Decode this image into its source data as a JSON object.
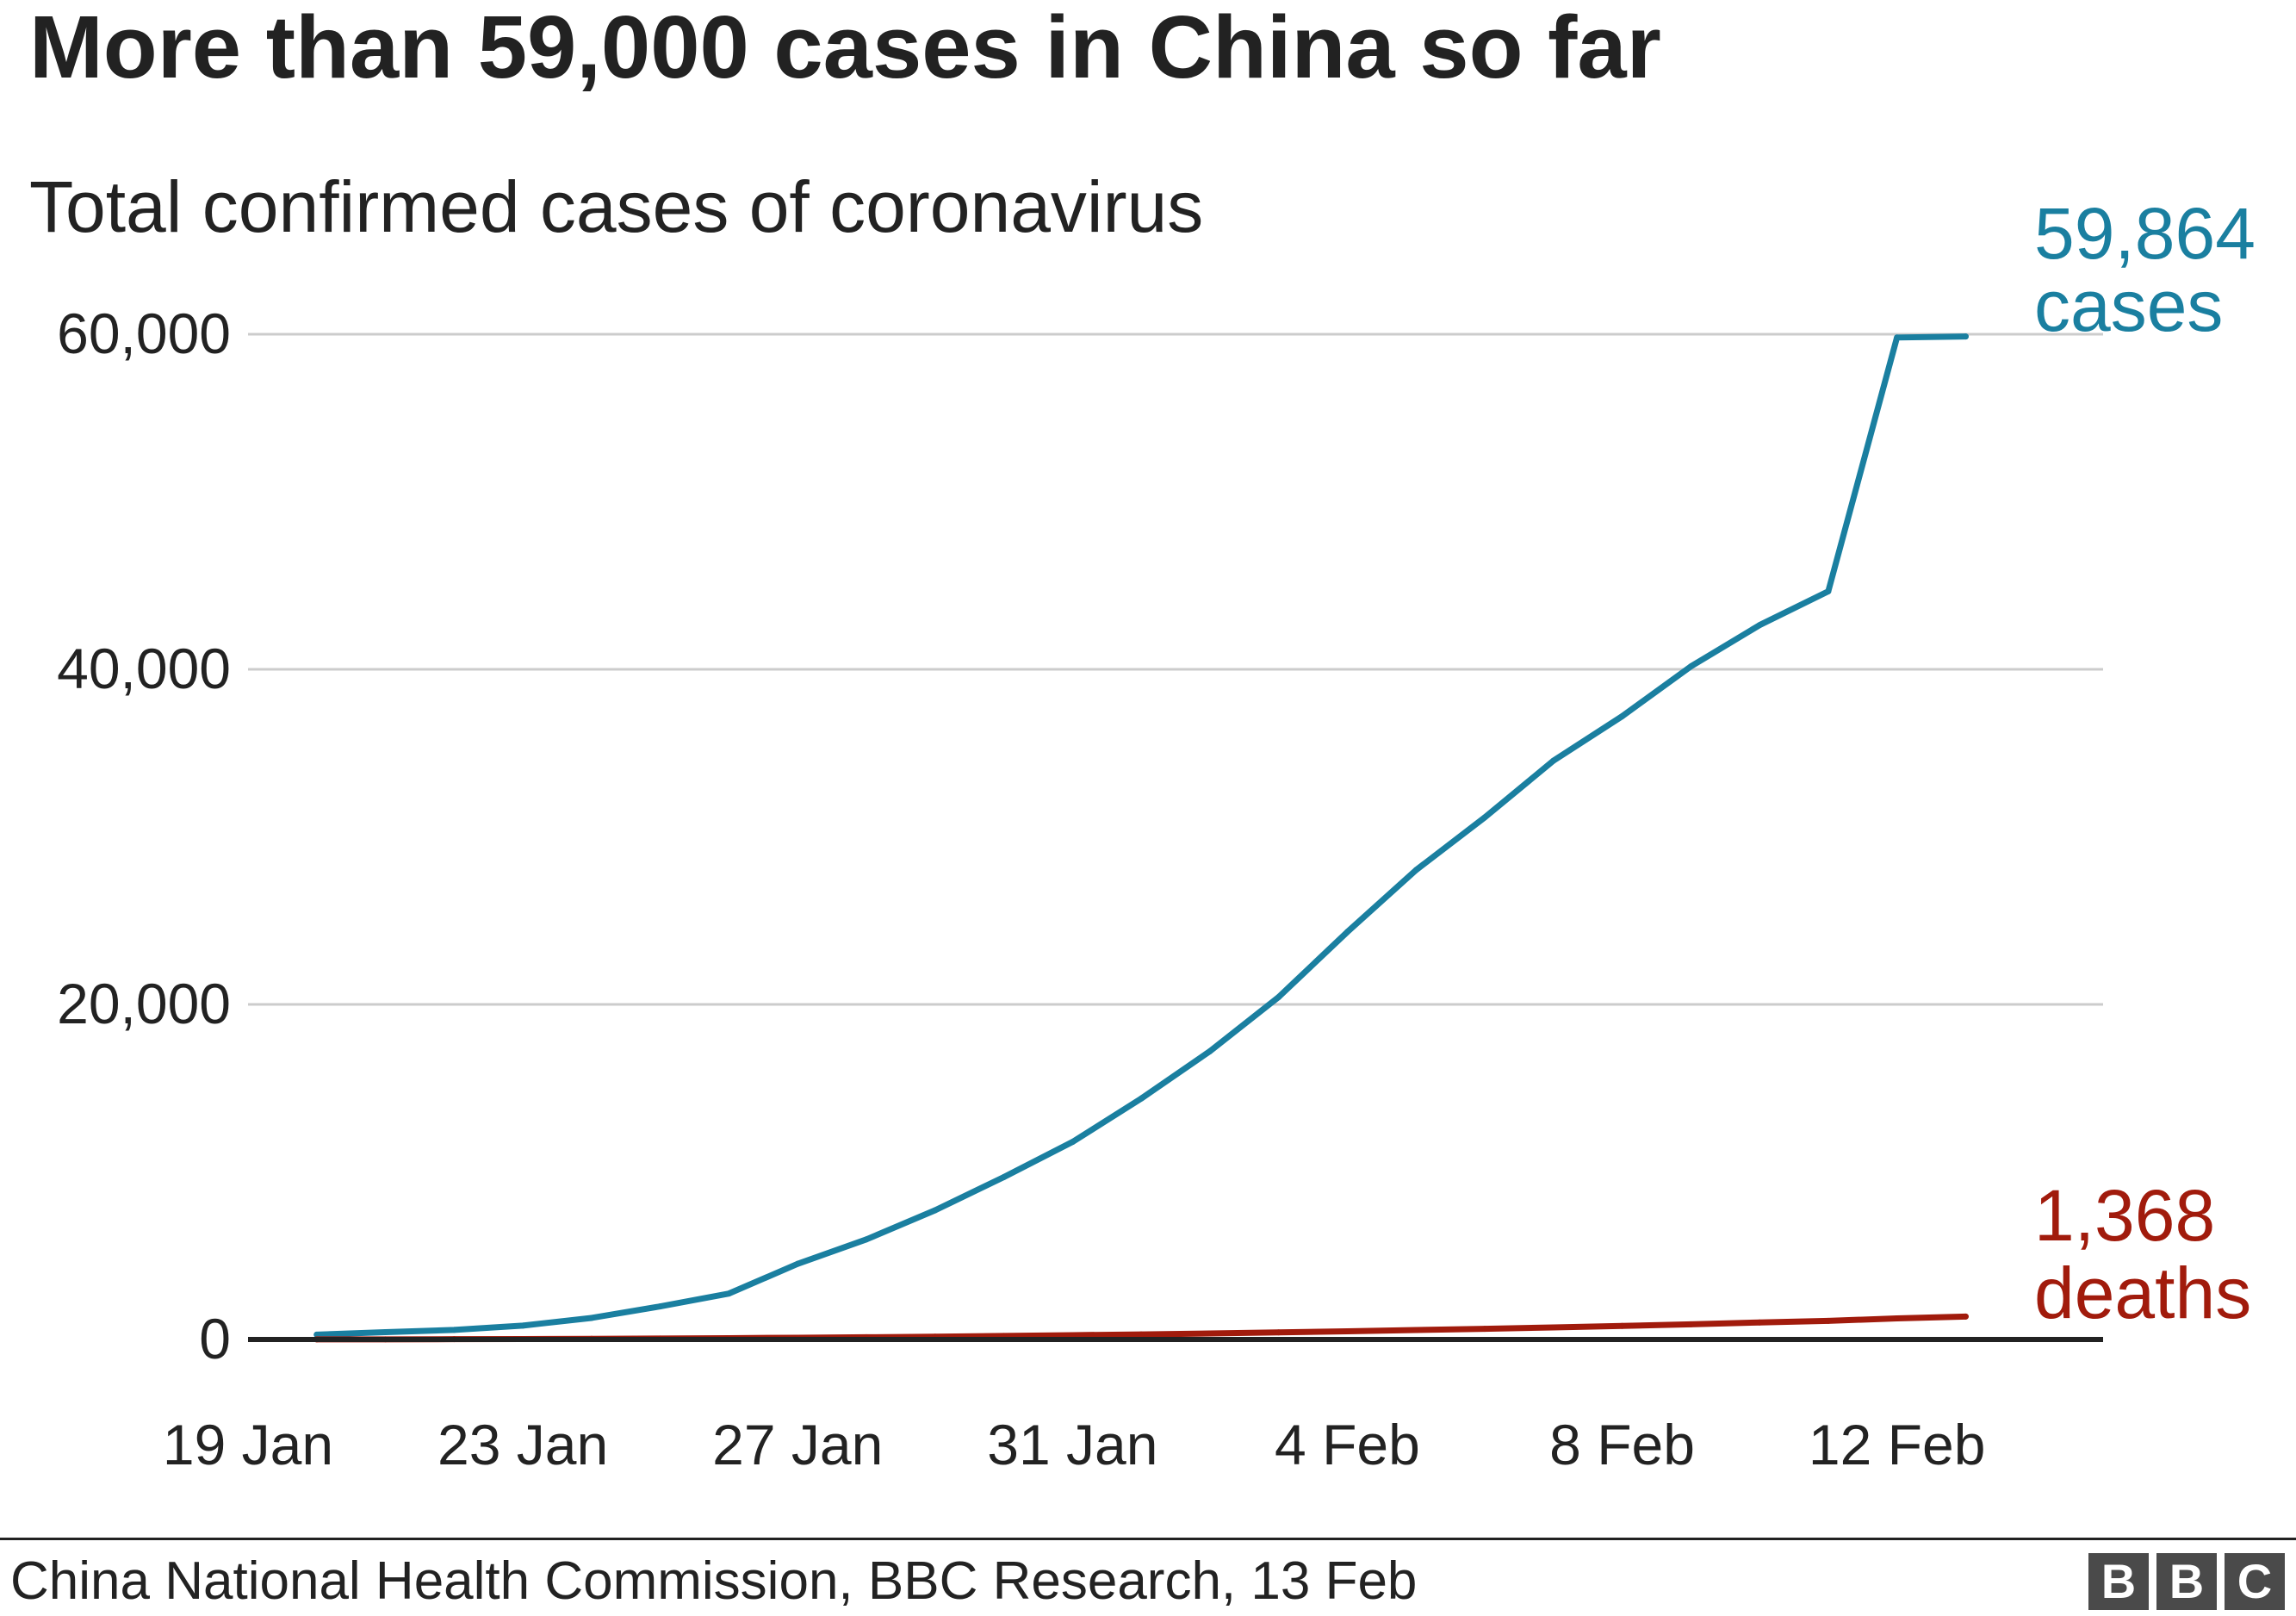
{
  "title": "More than 59,000 cases in China so far",
  "subtitle": "Total confirmed cases of coronavirus",
  "source": "China National Health Commission, BBC Research, 13 Feb",
  "logo": [
    "B",
    "B",
    "C"
  ],
  "colors": {
    "cases": "#1a7fa0",
    "deaths": "#a11b0c",
    "grid": "#cccccc",
    "baseline": "#222222",
    "text": "#222222"
  },
  "chart_data": {
    "type": "line",
    "title": "More than 59,000 cases in China so far",
    "subtitle": "Total confirmed cases of coronavirus",
    "xlabel": "",
    "ylabel": "",
    "xlim": [
      "2020-01-19",
      "2020-02-15"
    ],
    "ylim": [
      0,
      60000
    ],
    "grid": true,
    "legend": "none",
    "x_ticks": [
      {
        "date": "2020-01-19",
        "label": "19 Jan"
      },
      {
        "date": "2020-01-23",
        "label": "23 Jan"
      },
      {
        "date": "2020-01-27",
        "label": "27 Jan"
      },
      {
        "date": "2020-01-31",
        "label": "31 Jan"
      },
      {
        "date": "2020-02-04",
        "label": "4 Feb"
      },
      {
        "date": "2020-02-08",
        "label": "8 Feb"
      },
      {
        "date": "2020-02-12",
        "label": "12 Feb"
      }
    ],
    "y_ticks": [
      {
        "value": 0,
        "label": "0"
      },
      {
        "value": 20000,
        "label": "20,000"
      },
      {
        "value": 40000,
        "label": "40,000"
      },
      {
        "value": 60000,
        "label": "60,000"
      }
    ],
    "x": [
      "2020-01-20",
      "2020-01-21",
      "2020-01-22",
      "2020-01-23",
      "2020-01-24",
      "2020-01-25",
      "2020-01-26",
      "2020-01-27",
      "2020-01-28",
      "2020-01-29",
      "2020-01-30",
      "2020-01-31",
      "2020-02-01",
      "2020-02-02",
      "2020-02-03",
      "2020-02-04",
      "2020-02-05",
      "2020-02-06",
      "2020-02-07",
      "2020-02-08",
      "2020-02-09",
      "2020-02-10",
      "2020-02-11",
      "2020-02-12",
      "2020-02-13"
    ],
    "series": [
      {
        "key": "cases",
        "values": [
          291,
          440,
          571,
          830,
          1287,
          1975,
          2744,
          4515,
          5974,
          7711,
          9692,
          11791,
          14380,
          17205,
          20438,
          24324,
          28018,
          31161,
          34546,
          37198,
          40171,
          42638,
          44653,
          59804,
          59864
        ],
        "end_label": {
          "value": "59,864",
          "unit": "cases"
        }
      },
      {
        "key": "deaths",
        "values": [
          6,
          9,
          17,
          25,
          41,
          56,
          80,
          106,
          132,
          170,
          213,
          259,
          304,
          361,
          425,
          490,
          563,
          636,
          722,
          811,
          908,
          1016,
          1113,
          1259,
          1368
        ],
        "end_label": {
          "value": "1,368",
          "unit": "deaths"
        }
      }
    ]
  }
}
